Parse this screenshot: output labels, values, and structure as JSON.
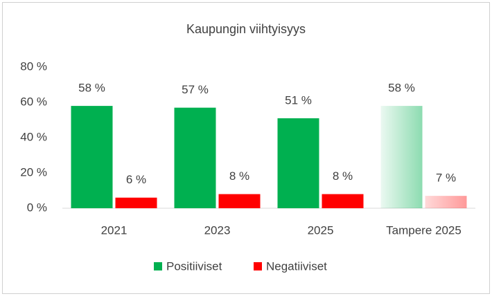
{
  "chart_data": {
    "type": "bar",
    "title": "Kaupungin viihtyisyys",
    "categories": [
      "2021",
      "2023",
      "2025",
      "Tampere 2025"
    ],
    "series": [
      {
        "name": "Positiiviset",
        "color": "#00b050",
        "values": [
          58,
          57,
          51,
          58
        ],
        "value_labels": [
          "58 %",
          "57 %",
          "51 %",
          "58 %"
        ]
      },
      {
        "name": "Negatiiviset",
        "color": "#ff0000",
        "values": [
          6,
          8,
          8,
          7
        ],
        "value_labels": [
          "6 %",
          "8 %",
          "8 %",
          "7 %"
        ]
      }
    ],
    "ylim": [
      0,
      80
    ],
    "yticks": [
      {
        "value": 0,
        "label": "0 %"
      },
      {
        "value": 20,
        "label": "20 %"
      },
      {
        "value": 40,
        "label": "40 %"
      },
      {
        "value": 60,
        "label": "60 %"
      },
      {
        "value": 80,
        "label": "80 %"
      }
    ],
    "grid": false,
    "legend": "bottom"
  }
}
